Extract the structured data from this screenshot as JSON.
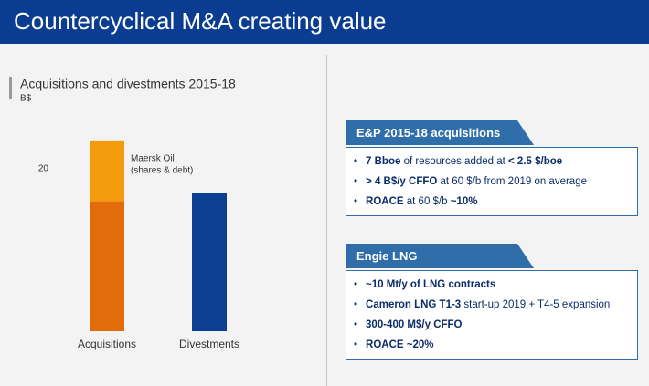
{
  "header": {
    "title": "Countercyclical M&A creating value"
  },
  "chart_data": {
    "type": "bar",
    "stacked": true,
    "title": "Acquisitions and divestments 2015-18",
    "subtitle": "B$",
    "categories": [
      "Acquisitions",
      "Divestments"
    ],
    "series": [
      {
        "colors": [
          "#e36c0a",
          "#0b3f93"
        ],
        "values": [
          16,
          17
        ]
      },
      {
        "label_lines": [
          "Maersk Oil",
          "(shares & debt)"
        ],
        "color": "#f39b0c",
        "values": [
          7.5,
          null
        ]
      }
    ],
    "ylim": [
      0,
      25
    ],
    "yticks": [
      20
    ],
    "grid": false
  },
  "panels": [
    {
      "title": "E&P 2015-18 acquisitions",
      "bullets": [
        [
          {
            "text": "7 Bboe",
            "bold": true
          },
          {
            "text": " of resources added at ",
            "bold": false
          },
          {
            "text": "< 2.5 $/boe",
            "bold": true
          }
        ],
        [
          {
            "text": "> 4 B$/y CFFO",
            "bold": true
          },
          {
            "text": " at 60 $/b from 2019 on average",
            "bold": false
          }
        ],
        [
          {
            "text": "ROACE",
            "bold": true
          },
          {
            "text": " at 60 $/b ",
            "bold": false
          },
          {
            "text": "~10%",
            "bold": true
          }
        ]
      ]
    },
    {
      "title": "Engie LNG",
      "bullets": [
        [
          {
            "text": "~10 Mt/y of LNG contracts",
            "bold": true
          }
        ],
        [
          {
            "text": "Cameron LNG T1-3",
            "bold": true
          },
          {
            "text": " start-up 2019 + T4-5 expansion",
            "bold": false
          }
        ],
        [
          {
            "text": "300-400 M$/y CFFO",
            "bold": true
          }
        ],
        [
          {
            "text": "ROACE ~20%",
            "bold": true
          }
        ]
      ]
    }
  ]
}
